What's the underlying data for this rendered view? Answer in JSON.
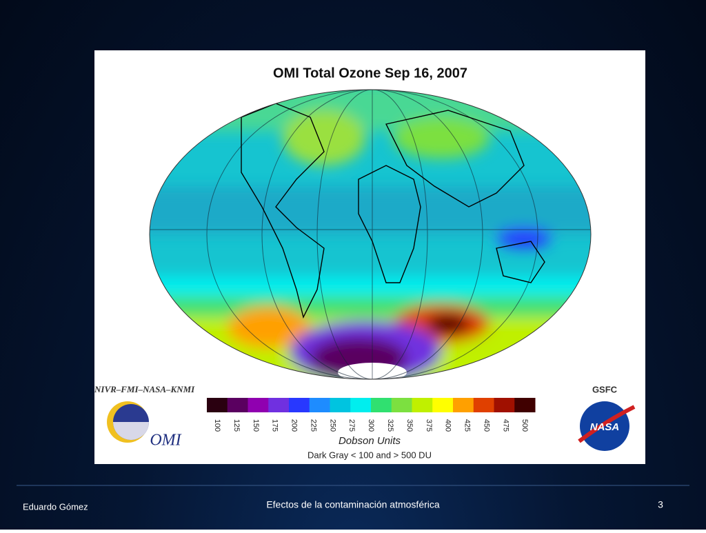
{
  "image": {
    "title": "OMI Total Ozone Sep 16, 2007",
    "credit": "NIVR–FMI–NASA–KNMI",
    "center_logo": "GSFC",
    "instrument_logo": "OMI",
    "nasa_logo": "NASA",
    "colorbar": {
      "ticks": [
        100,
        125,
        150,
        175,
        200,
        225,
        250,
        275,
        300,
        325,
        350,
        375,
        400,
        425,
        450,
        475,
        500
      ],
      "colors": [
        "#2a0010",
        "#5a0060",
        "#9000b0",
        "#7030e0",
        "#2838ff",
        "#1e8cff",
        "#00c4e0",
        "#00eeee",
        "#30e070",
        "#7ce040",
        "#c0f000",
        "#ffff00",
        "#ffa000",
        "#e04000",
        "#a01000",
        "#400000"
      ],
      "unit": "Dobson Units",
      "note": "Dark Gray < 100 and > 500 DU"
    }
  },
  "footer": {
    "author": "Eduardo Gómez",
    "title": "Efectos de la contaminación atmosférica",
    "page": 3
  }
}
